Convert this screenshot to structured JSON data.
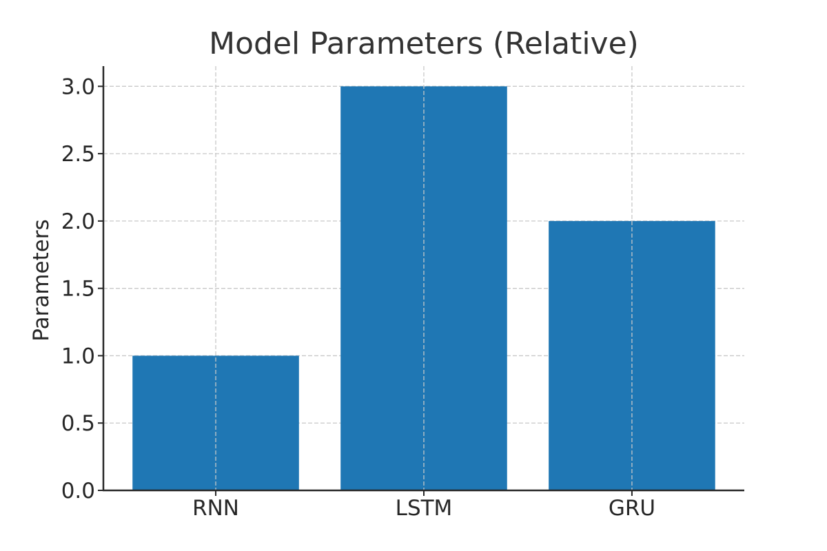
{
  "chart_data": {
    "type": "bar",
    "title": "Model Parameters (Relative)",
    "xlabel": "",
    "ylabel": "Parameters",
    "categories": [
      "RNN",
      "LSTM",
      "GRU"
    ],
    "values": [
      1.0,
      3.0,
      2.0
    ],
    "ylim": [
      0,
      3.15
    ],
    "yticks": [
      0.0,
      0.5,
      1.0,
      1.5,
      2.0,
      2.5,
      3.0
    ],
    "ytick_labels": [
      "0.0",
      "0.5",
      "1.0",
      "1.5",
      "2.0",
      "2.5",
      "3.0"
    ],
    "grid": true,
    "bar_color": "#1f77b4"
  }
}
